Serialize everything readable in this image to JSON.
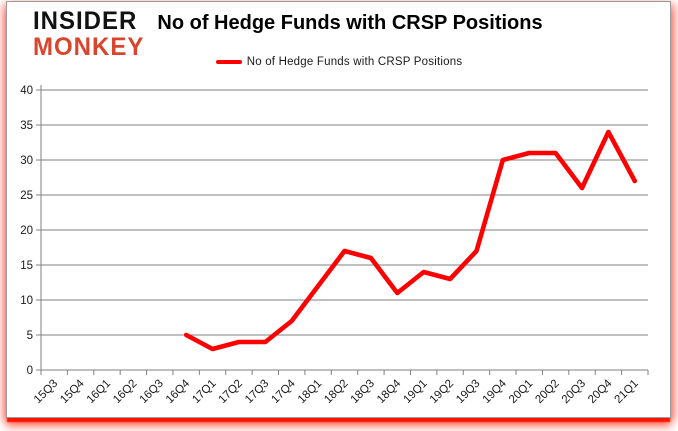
{
  "brand": {
    "line1": "INSIDER",
    "line2": "MONKEY",
    "color_top": "#111111",
    "color_bottom": "#d9452c"
  },
  "header": {
    "title": "No of Hedge Funds with CRSP Positions"
  },
  "legend": {
    "label": "No of Hedge Funds with CRSP Positions",
    "swatch_color": "#ff0000",
    "position": "top-center"
  },
  "chart_data": {
    "type": "line",
    "title": "No of Hedge Funds with CRSP Positions",
    "categories": [
      "15Q3",
      "15Q4",
      "16Q1",
      "16Q2",
      "16Q3",
      "16Q4",
      "17Q1",
      "17Q2",
      "17Q3",
      "17Q4",
      "18Q1",
      "18Q2",
      "18Q3",
      "18Q4",
      "19Q1",
      "19Q2",
      "19Q3",
      "19Q4",
      "20Q1",
      "20Q2",
      "20Q3",
      "20Q4",
      "21Q1"
    ],
    "series": [
      {
        "name": "No of Hedge Funds with CRSP Positions",
        "color": "#ff0000",
        "values": [
          null,
          null,
          null,
          null,
          null,
          5,
          3,
          4,
          4,
          7,
          12,
          17,
          16,
          11,
          14,
          13,
          17,
          30,
          31,
          31,
          26,
          34,
          27
        ]
      }
    ],
    "xlabel": "",
    "ylabel": "",
    "ylim": [
      0,
      40
    ],
    "ytick_interval": 5,
    "ytick_labels": [
      "0",
      "5",
      "10",
      "15",
      "20",
      "25",
      "30",
      "35",
      "40"
    ],
    "grid": true,
    "gridline_color": "#808080",
    "axis_text_color": "#1a1a1a",
    "legend_position": "top"
  },
  "colors": {
    "accent_red": "#ff0000",
    "logo_red": "#d9452c",
    "grid_gray": "#808080",
    "border_glow": "#ff1500"
  }
}
